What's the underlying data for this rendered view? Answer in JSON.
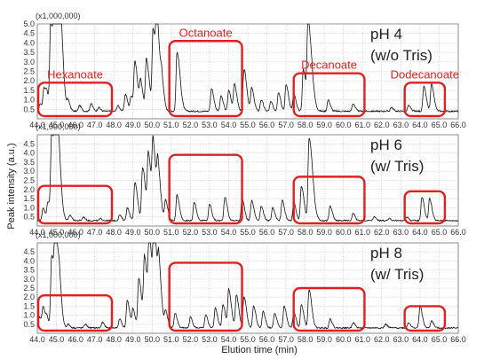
{
  "chart_data": {
    "type": "line",
    "xlabel": "Elution time (min)",
    "ylabel": "Peak intensity (a.u.)",
    "xlim": [
      44.0,
      66.0
    ],
    "x_ticks": [
      "44.0",
      "45.0",
      "46.0",
      "47.0",
      "48.0",
      "49.0",
      "50.0",
      "51.0",
      "52.0",
      "53.0",
      "54.0",
      "55.0",
      "56.0",
      "57.0",
      "58.0",
      "59.0",
      "60.0",
      "61.0",
      "62.0",
      "63.0",
      "64.0",
      "65.0",
      "66.0"
    ],
    "y_scale_label": "(x1,000,000)",
    "grid": true,
    "panels": [
      {
        "condition_line1": "pH 4",
        "condition_line2": "(w/o Tris)",
        "ylim": [
          0,
          5.0
        ],
        "y_ticks": [
          "0.5",
          "1.0",
          "1.5",
          "2.0",
          "2.5",
          "3.0",
          "3.5",
          "4.0",
          "4.5",
          "5.0"
        ],
        "baseline": 0.4,
        "peaks": [
          [
            44.15,
            0.8
          ],
          [
            44.35,
            1.6
          ],
          [
            44.5,
            1.0
          ],
          [
            44.7,
            5.0
          ],
          [
            44.9,
            5.0
          ],
          [
            45.1,
            5.0
          ],
          [
            45.25,
            1.3
          ],
          [
            45.6,
            0.9
          ],
          [
            46.2,
            0.7
          ],
          [
            46.8,
            0.8
          ],
          [
            47.2,
            0.6
          ],
          [
            48.2,
            0.7
          ],
          [
            48.6,
            1.3
          ],
          [
            48.9,
            1.2
          ],
          [
            49.1,
            2.9
          ],
          [
            49.4,
            1.8
          ],
          [
            49.7,
            3.1
          ],
          [
            50.05,
            4.6
          ],
          [
            50.25,
            3.8
          ],
          [
            50.5,
            1.5
          ],
          [
            51.3,
            3.5
          ],
          [
            53.1,
            1.6
          ],
          [
            53.6,
            1.2
          ],
          [
            54.0,
            1.5
          ],
          [
            54.3,
            1.8
          ],
          [
            54.8,
            2.6
          ],
          [
            55.2,
            1.6
          ],
          [
            55.7,
            1.0
          ],
          [
            56.2,
            0.9
          ],
          [
            56.6,
            1.4
          ],
          [
            57.0,
            1.8
          ],
          [
            57.4,
            1.3
          ],
          [
            57.9,
            2.6
          ],
          [
            58.15,
            5.0
          ],
          [
            59.2,
            1.0
          ],
          [
            60.5,
            0.8
          ],
          [
            62.5,
            0.6
          ],
          [
            63.4,
            0.7
          ],
          [
            64.2,
            1.7
          ],
          [
            64.6,
            1.8
          ]
        ],
        "regions": [
          {
            "label": "Hexanoate",
            "x0": 44.05,
            "x1": 47.9,
            "y1": 1.9
          },
          {
            "label": "Octanoate",
            "x0": 50.9,
            "x1": 54.7,
            "y1": 4.1
          },
          {
            "label": "Decanoate",
            "x0": 57.4,
            "x1": 61.1,
            "y1": 2.4
          },
          {
            "label": "Dodecanoate",
            "x0": 63.2,
            "x1": 65.3,
            "y1": 1.9
          }
        ]
      },
      {
        "condition_line1": "pH 6",
        "condition_line2": "(w/ Tris)",
        "ylim": [
          0,
          5.0
        ],
        "y_ticks": [
          "0.5",
          "1.0",
          "1.5",
          "2.0",
          "2.5",
          "3.0",
          "3.5",
          "4.0",
          "4.5"
        ],
        "baseline": 0.3,
        "peaks": [
          [
            44.3,
            1.0
          ],
          [
            44.55,
            1.3
          ],
          [
            44.75,
            5.0
          ],
          [
            44.95,
            5.0
          ],
          [
            45.15,
            1.3
          ],
          [
            45.7,
            0.6
          ],
          [
            46.4,
            0.5
          ],
          [
            47.3,
            0.4
          ],
          [
            48.3,
            0.6
          ],
          [
            48.7,
            1.0
          ],
          [
            49.1,
            2.4
          ],
          [
            49.5,
            3.2
          ],
          [
            49.8,
            3.7
          ],
          [
            50.05,
            3.9
          ],
          [
            50.3,
            2.7
          ],
          [
            50.7,
            1.4
          ],
          [
            51.3,
            1.7
          ],
          [
            52.2,
            1.3
          ],
          [
            53.0,
            1.2
          ],
          [
            53.8,
            1.6
          ],
          [
            54.7,
            1.5
          ],
          [
            55.2,
            1.4
          ],
          [
            55.7,
            1.1
          ],
          [
            56.3,
            1.0
          ],
          [
            56.8,
            1.4
          ],
          [
            57.4,
            1.3
          ],
          [
            57.8,
            2.2
          ],
          [
            58.2,
            4.8
          ],
          [
            59.3,
            1.1
          ],
          [
            60.5,
            0.7
          ],
          [
            61.6,
            0.5
          ],
          [
            62.4,
            0.4
          ],
          [
            63.3,
            0.5
          ],
          [
            64.1,
            1.6
          ],
          [
            64.5,
            1.5
          ]
        ],
        "regions": [
          {
            "label": "",
            "x0": 44.05,
            "x1": 47.9,
            "y1": 2.2
          },
          {
            "label": "",
            "x0": 50.9,
            "x1": 54.7,
            "y1": 3.9
          },
          {
            "label": "",
            "x0": 57.4,
            "x1": 61.1,
            "y1": 2.7
          },
          {
            "label": "",
            "x0": 63.2,
            "x1": 65.3,
            "y1": 1.9
          }
        ]
      },
      {
        "condition_line1": "pH 8",
        "condition_line2": "(w/ Tris)",
        "ylim": [
          0,
          5.0
        ],
        "y_ticks": [
          "0.5",
          "1.0",
          "1.5",
          "2.0",
          "2.5",
          "3.0",
          "3.5",
          "4.0",
          "4.5"
        ],
        "baseline": 0.3,
        "peaks": [
          [
            44.1,
            0.9
          ],
          [
            44.3,
            1.4
          ],
          [
            44.5,
            0.8
          ],
          [
            44.75,
            4.3
          ],
          [
            44.95,
            4.5
          ],
          [
            45.15,
            1.4
          ],
          [
            45.6,
            0.5
          ],
          [
            46.5,
            0.5
          ],
          [
            47.4,
            0.6
          ],
          [
            48.3,
            0.8
          ],
          [
            48.7,
            1.8
          ],
          [
            49.0,
            1.3
          ],
          [
            49.3,
            3.0
          ],
          [
            49.6,
            4.0
          ],
          [
            49.85,
            4.6
          ],
          [
            50.1,
            4.9
          ],
          [
            50.35,
            2.6
          ],
          [
            50.7,
            1.2
          ],
          [
            51.2,
            1.1
          ],
          [
            52.0,
            0.9
          ],
          [
            52.8,
            1.0
          ],
          [
            53.3,
            1.4
          ],
          [
            53.7,
            1.6
          ],
          [
            54.0,
            2.4
          ],
          [
            54.4,
            2.1
          ],
          [
            54.8,
            2.0
          ],
          [
            55.3,
            1.5
          ],
          [
            55.8,
            1.2
          ],
          [
            56.4,
            1.1
          ],
          [
            56.9,
            1.5
          ],
          [
            57.4,
            1.2
          ],
          [
            57.8,
            1.6
          ],
          [
            58.2,
            2.4
          ],
          [
            59.3,
            0.8
          ],
          [
            60.5,
            0.6
          ],
          [
            62.2,
            0.5
          ],
          [
            63.4,
            0.6
          ],
          [
            64.0,
            1.5
          ],
          [
            64.6,
            0.7
          ]
        ],
        "regions": [
          {
            "label": "",
            "x0": 44.05,
            "x1": 47.9,
            "y1": 2.1
          },
          {
            "label": "",
            "x0": 50.9,
            "x1": 54.7,
            "y1": 3.9
          },
          {
            "label": "",
            "x0": 57.4,
            "x1": 61.1,
            "y1": 2.5
          },
          {
            "label": "",
            "x0": 63.2,
            "x1": 65.3,
            "y1": 1.5
          }
        ]
      }
    ]
  },
  "colors": {
    "trace": "#111111",
    "region_box": "#e02020",
    "grid": "#c8c8c8",
    "axis": "#888888"
  }
}
